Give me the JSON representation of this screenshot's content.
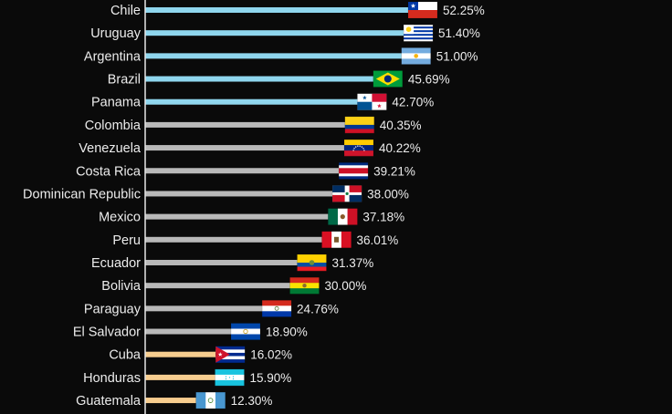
{
  "chart_data": {
    "type": "bar",
    "orientation": "horizontal",
    "xlim": [
      0,
      52.25
    ],
    "unit": "%",
    "categories": [
      "Chile",
      "Uruguay",
      "Argentina",
      "Brazil",
      "Panama",
      "Colombia",
      "Venezuela",
      "Costa Rica",
      "Dominican Republic",
      "Mexico",
      "Peru",
      "Ecuador",
      "Bolivia",
      "Paraguay",
      "El Salvador",
      "Cuba",
      "Honduras",
      "Guatemala"
    ],
    "values": [
      52.25,
      51.4,
      51.0,
      45.69,
      42.7,
      40.35,
      40.22,
      39.21,
      38.0,
      37.18,
      36.01,
      31.37,
      30.0,
      24.76,
      18.9,
      16.02,
      15.9,
      12.3
    ],
    "value_labels": [
      "52.25%",
      "51.40%",
      "51.00%",
      "45.69%",
      "42.70%",
      "40.35%",
      "40.22%",
      "39.21%",
      "38.00%",
      "37.18%",
      "36.01%",
      "31.37%",
      "30.00%",
      "24.76%",
      "18.90%",
      "16.02%",
      "15.90%",
      "12.30%"
    ],
    "groups": [
      "top",
      "top",
      "top",
      "top",
      "top",
      "middle",
      "middle",
      "middle",
      "middle",
      "middle",
      "middle",
      "middle",
      "middle",
      "middle",
      "middle",
      "bottom",
      "bottom",
      "bottom"
    ],
    "group_colors": {
      "top": "#8fd6ee",
      "middle": "#b9b9b9",
      "bottom": "#f7cd8f"
    },
    "flag_icons": [
      "flag-chile-icon",
      "flag-uruguay-icon",
      "flag-argentina-icon",
      "flag-brazil-icon",
      "flag-panama-icon",
      "flag-colombia-icon",
      "flag-venezuela-icon",
      "flag-costa-rica-icon",
      "flag-dominican-republic-icon",
      "flag-mexico-icon",
      "flag-peru-icon",
      "flag-ecuador-icon",
      "flag-bolivia-icon",
      "flag-paraguay-icon",
      "flag-el-salvador-icon",
      "flag-cuba-icon",
      "flag-honduras-icon",
      "flag-guatemala-icon"
    ]
  }
}
